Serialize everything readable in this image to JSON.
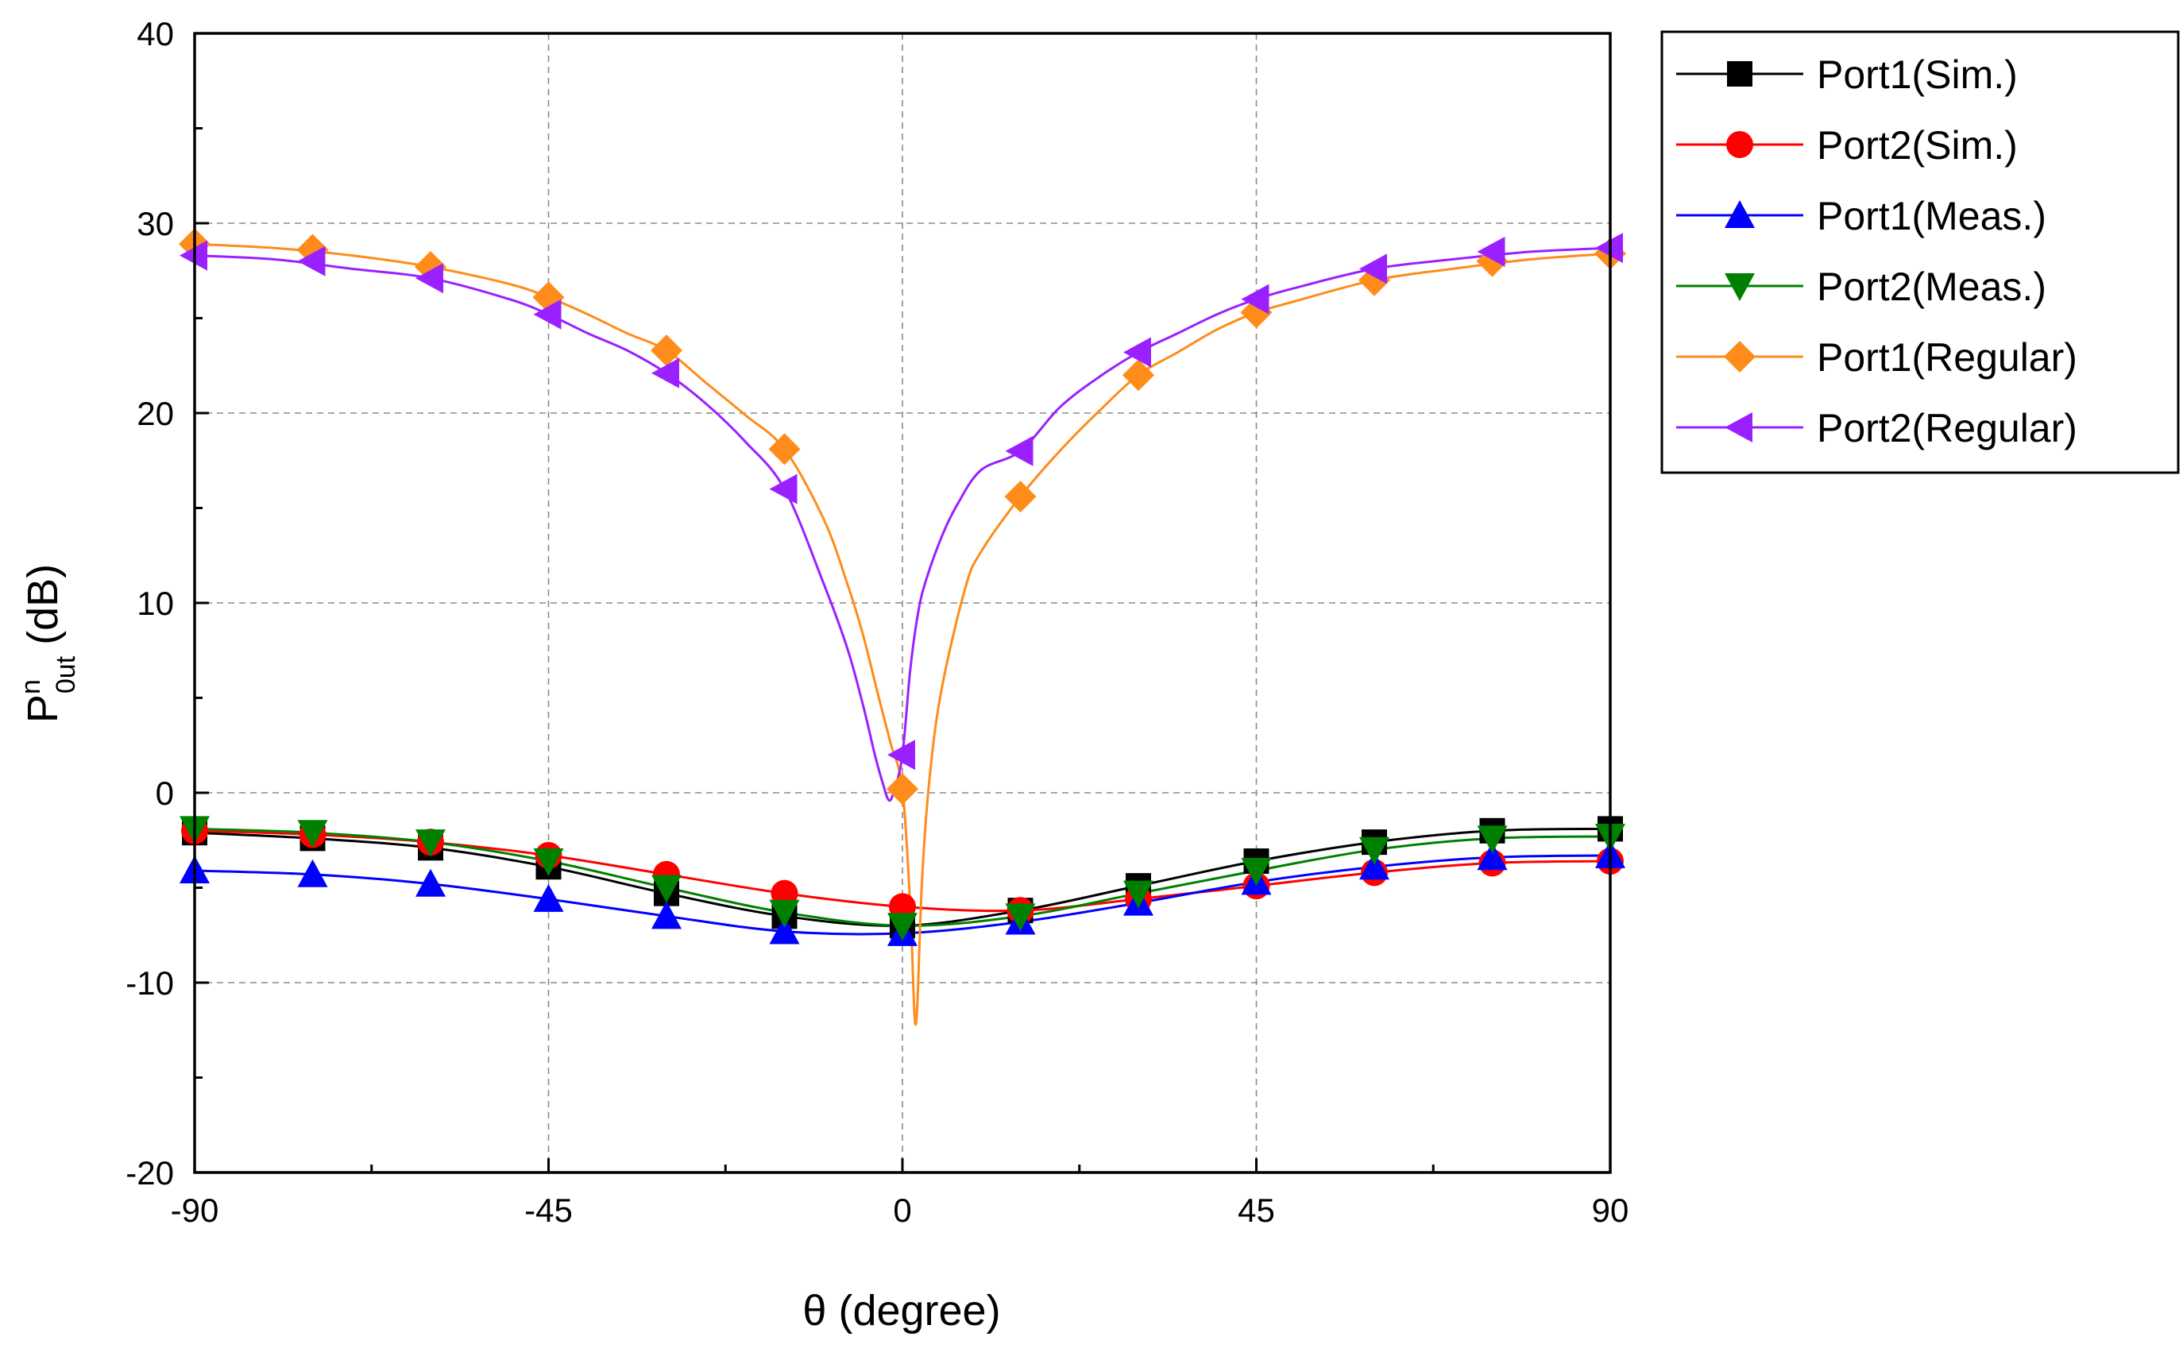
{
  "chart_data": {
    "type": "line",
    "title": "",
    "xlabel": "θ (degree)",
    "ylabel_main": "P",
    "ylabel_sup": "n",
    "ylabel_sub": "0ut",
    "ylabel_unit": "(dB)",
    "xlim": [
      -90,
      90
    ],
    "ylim": [
      -20,
      40
    ],
    "xticks": [
      -90,
      -45,
      0,
      45,
      90
    ],
    "yticks": [
      -20,
      -10,
      0,
      10,
      20,
      30,
      40
    ],
    "grid": true,
    "legend_position": "right-outside-top",
    "series": [
      {
        "name": "Port1(Sim.)",
        "color": "#000000",
        "marker": "square",
        "x": [
          -90,
          -75,
          -60,
          -45,
          -30,
          -15,
          0,
          15,
          30,
          45,
          60,
          75,
          90
        ],
        "y": [
          -2.1,
          -2.4,
          -2.9,
          -3.9,
          -5.3,
          -6.5,
          -7.0,
          -6.2,
          -4.9,
          -3.6,
          -2.6,
          -2.0,
          -1.9
        ]
      },
      {
        "name": "Port2(Sim.)",
        "color": "#ff0000",
        "marker": "circle",
        "x": [
          -90,
          -75,
          -60,
          -45,
          -30,
          -15,
          0,
          15,
          30,
          45,
          60,
          75,
          90
        ],
        "y": [
          -2.0,
          -2.2,
          -2.6,
          -3.3,
          -4.3,
          -5.3,
          -6.0,
          -6.2,
          -5.6,
          -4.9,
          -4.2,
          -3.7,
          -3.6
        ]
      },
      {
        "name": "Port1(Meas.)",
        "color": "#0000ff",
        "marker": "triangle-up",
        "x": [
          -90,
          -75,
          -60,
          -45,
          -30,
          -15,
          0,
          15,
          30,
          45,
          60,
          75,
          90
        ],
        "y": [
          -4.1,
          -4.3,
          -4.8,
          -5.6,
          -6.5,
          -7.3,
          -7.4,
          -6.8,
          -5.8,
          -4.7,
          -3.9,
          -3.4,
          -3.3
        ]
      },
      {
        "name": "Port2(Meas.)",
        "color": "#008000",
        "marker": "triangle-down",
        "x": [
          -90,
          -75,
          -60,
          -45,
          -30,
          -15,
          0,
          15,
          30,
          45,
          60,
          75,
          90
        ],
        "y": [
          -1.9,
          -2.1,
          -2.6,
          -3.6,
          -5.0,
          -6.3,
          -7.0,
          -6.5,
          -5.3,
          -4.1,
          -3.0,
          -2.4,
          -2.3
        ]
      },
      {
        "name": "Port1(Regular)",
        "color": "#ff8c1a",
        "marker": "diamond",
        "x": [
          -90,
          -75,
          -60,
          -45,
          -30,
          -15,
          0,
          15,
          30,
          45,
          60,
          75,
          90
        ],
        "y": [
          28.9,
          28.6,
          27.7,
          26.1,
          23.3,
          18.1,
          0.2,
          15.6,
          22.0,
          25.3,
          27.0,
          28.0,
          28.4
        ],
        "curve_x": [
          -90,
          -80,
          -70,
          -60,
          -50,
          -45,
          -40,
          -35,
          -30,
          -25,
          -20,
          -15,
          -10,
          -7,
          -5,
          -3,
          -1.5,
          0,
          1,
          1.7,
          2.5,
          3.5,
          5,
          8,
          10,
          15,
          20,
          25,
          30,
          35,
          40,
          45,
          50,
          60,
          70,
          80,
          90
        ],
        "curve_y": [
          28.9,
          28.7,
          28.3,
          27.7,
          26.8,
          26.1,
          25.2,
          24.2,
          23.3,
          21.6,
          19.9,
          18.1,
          14.4,
          11.0,
          8.3,
          5.0,
          2.6,
          0.2,
          -6.0,
          -12.2,
          -4.5,
          1.0,
          5.5,
          10.8,
          12.7,
          15.6,
          18.0,
          20.1,
          22.0,
          23.2,
          24.4,
          25.3,
          25.9,
          27.0,
          27.6,
          28.1,
          28.4
        ]
      },
      {
        "name": "Port2(Regular)",
        "color": "#9b20ff",
        "marker": "triangle-left",
        "x": [
          -90,
          -75,
          -60,
          -45,
          -30,
          -15,
          0,
          15,
          30,
          45,
          60,
          75,
          90
        ],
        "y": [
          28.3,
          28.0,
          27.1,
          25.2,
          22.1,
          16.0,
          2.0,
          18.0,
          23.2,
          26.0,
          27.6,
          28.5,
          28.7
        ],
        "curve_x": [
          -90,
          -80,
          -70,
          -60,
          -50,
          -45,
          -40,
          -35,
          -30,
          -25,
          -20,
          -15,
          -10,
          -7,
          -5,
          -3.5,
          -2.5,
          -1.7,
          -1,
          0,
          1,
          2,
          3,
          5,
          7,
          10,
          15,
          20,
          25,
          30,
          35,
          40,
          45,
          50,
          60,
          70,
          80,
          90
        ],
        "curve_y": [
          28.3,
          28.1,
          27.6,
          27.1,
          26.0,
          25.2,
          24.2,
          23.3,
          22.1,
          20.5,
          18.5,
          16.0,
          11.0,
          7.6,
          4.6,
          2.0,
          0.5,
          -0.4,
          0.2,
          2.0,
          6.5,
          9.5,
          11.2,
          13.5,
          15.2,
          17.0,
          18.0,
          20.3,
          21.9,
          23.2,
          24.2,
          25.2,
          26.0,
          26.6,
          27.6,
          28.1,
          28.5,
          28.7
        ]
      }
    ]
  }
}
